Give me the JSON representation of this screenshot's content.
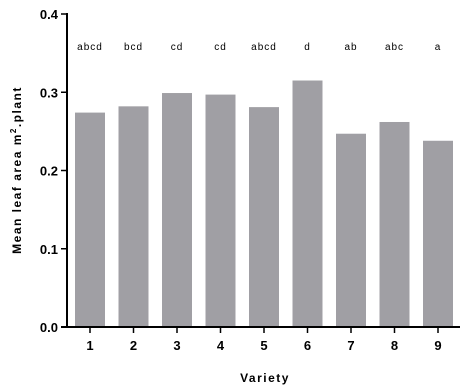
{
  "chart_data": {
    "type": "bar",
    "categories": [
      "1",
      "2",
      "3",
      "4",
      "5",
      "6",
      "7",
      "8",
      "9"
    ],
    "values": [
      0.274,
      0.282,
      0.299,
      0.297,
      0.281,
      0.315,
      0.247,
      0.262,
      0.238
    ],
    "group_letters": [
      "abcd",
      "bcd",
      "cd",
      "cd",
      "abcd",
      "d",
      "ab",
      "abc",
      "a"
    ],
    "xlabel": "Variety",
    "ylabel_main": "Mean leaf area m",
    "ylabel_sup": "2",
    "ylabel_end": ".plant",
    "ylim": [
      0,
      0.4
    ],
    "yticks": [
      "0.0",
      "0.1",
      "0.2",
      "0.3",
      "0.4"
    ],
    "grid": false,
    "bar_color": "#a09fa4"
  }
}
